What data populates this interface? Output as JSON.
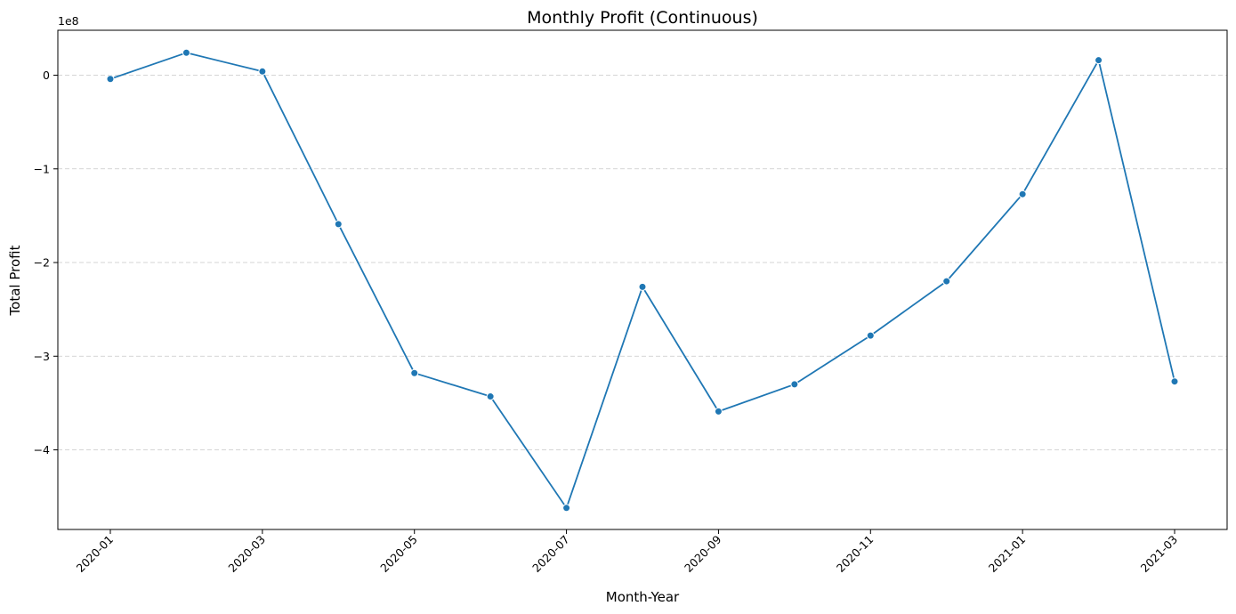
{
  "chart_data": {
    "type": "line",
    "title": "Monthly Profit (Continuous)",
    "xlabel": "Month-Year",
    "ylabel": "Total Profit",
    "y_offset_label": "1e8",
    "y_scale": 100000000,
    "ylim": [
      -4.85,
      0.48
    ],
    "grid": "y-dashed",
    "color": "#1f77b4",
    "x_ticks": [
      "2020-01",
      "2020-03",
      "2020-05",
      "2020-07",
      "2020-09",
      "2020-11",
      "2021-01",
      "2021-03"
    ],
    "y_ticks": [
      "0",
      "−1",
      "−2",
      "−3",
      "−4"
    ],
    "y_tick_values": [
      0,
      -1,
      -2,
      -3,
      -4
    ],
    "series": [
      {
        "x": [
          "2020-01",
          "2020-02",
          "2020-03",
          "2020-04",
          "2020-05",
          "2020-06",
          "2020-07",
          "2020-08",
          "2020-09",
          "2020-10",
          "2020-11",
          "2020-12",
          "2021-01",
          "2021-02",
          "2021-03"
        ],
        "values": [
          -4000000,
          24000000,
          4000000,
          -159000000,
          -318000000,
          -343000000,
          -462000000,
          -226000000,
          -359000000,
          -330000000,
          -278000000,
          -220000000,
          -127000000,
          16000000,
          -327000000
        ]
      }
    ]
  }
}
